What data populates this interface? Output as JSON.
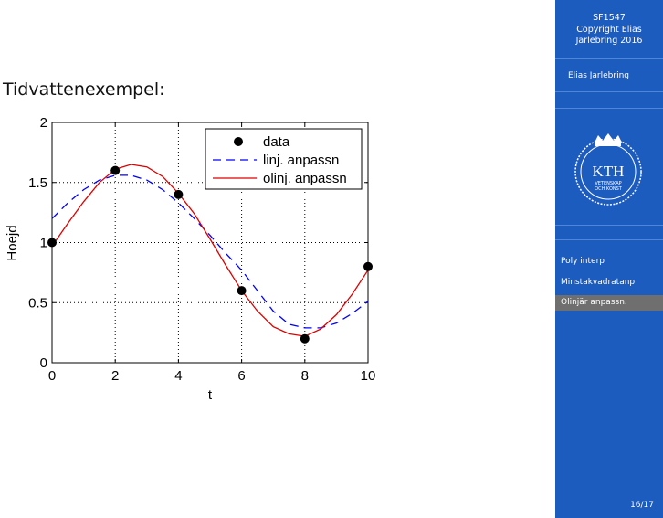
{
  "slide": {
    "title": "Tidvattenexempel:"
  },
  "sidebar": {
    "course": "SF1547",
    "copyright_line1": "Copyright Elias",
    "copyright_line2": "Jarlebring 2016",
    "author": "Elias Jarlebring",
    "logo_text": "KTH",
    "logo_subtext1": "VETENSKAP",
    "logo_subtext2": "OCH KONST",
    "nav": [
      {
        "label": "Poly interp",
        "active": false
      },
      {
        "label": "Minstakvadratanp",
        "active": false
      },
      {
        "label": "Olinjär anpassn.",
        "active": true
      }
    ],
    "page": "16/17"
  },
  "colors": {
    "sidebar_bg": "#1d5cbf",
    "active_item": "#6f6f6f",
    "linear_fit": "#0000ff",
    "nonlinear_fit": "#dd0000"
  },
  "chart_data": {
    "type": "line",
    "xlabel": "t",
    "ylabel": "Hoejd",
    "xlim": [
      0,
      10
    ],
    "ylim": [
      0,
      2
    ],
    "xticks": [
      "0",
      "2",
      "4",
      "6",
      "8",
      "10"
    ],
    "yticks": [
      "0",
      "0.5",
      "1",
      "1.5",
      "2"
    ],
    "grid": true,
    "legend_position": "top-right",
    "series": [
      {
        "name": "data",
        "style": "markers",
        "x": [
          0,
          2,
          4,
          6,
          8,
          10
        ],
        "y": [
          1.0,
          1.6,
          1.4,
          0.6,
          0.2,
          0.8
        ]
      },
      {
        "name": "linj. anpassn",
        "style": "dashed",
        "x": [
          0,
          0.5,
          1,
          1.5,
          2,
          2.5,
          3,
          3.5,
          4,
          4.5,
          5,
          5.5,
          6,
          6.5,
          7,
          7.5,
          8,
          8.5,
          9,
          9.5,
          10
        ],
        "y": [
          1.2,
          1.33,
          1.44,
          1.52,
          1.56,
          1.56,
          1.52,
          1.44,
          1.33,
          1.2,
          1.06,
          0.91,
          0.77,
          0.6,
          0.43,
          0.32,
          0.29,
          0.29,
          0.33,
          0.41,
          0.51
        ]
      },
      {
        "name": "olinj. anpassn",
        "style": "solid",
        "x": [
          0,
          0.5,
          1,
          1.5,
          2,
          2.5,
          3,
          3.5,
          4,
          4.5,
          5,
          5.5,
          6,
          6.5,
          7,
          7.5,
          8,
          8.5,
          9,
          9.5,
          10
        ],
        "y": [
          0.97,
          1.16,
          1.34,
          1.5,
          1.61,
          1.65,
          1.63,
          1.55,
          1.41,
          1.24,
          1.03,
          0.81,
          0.6,
          0.43,
          0.3,
          0.24,
          0.22,
          0.28,
          0.4,
          0.57,
          0.77
        ]
      }
    ]
  }
}
